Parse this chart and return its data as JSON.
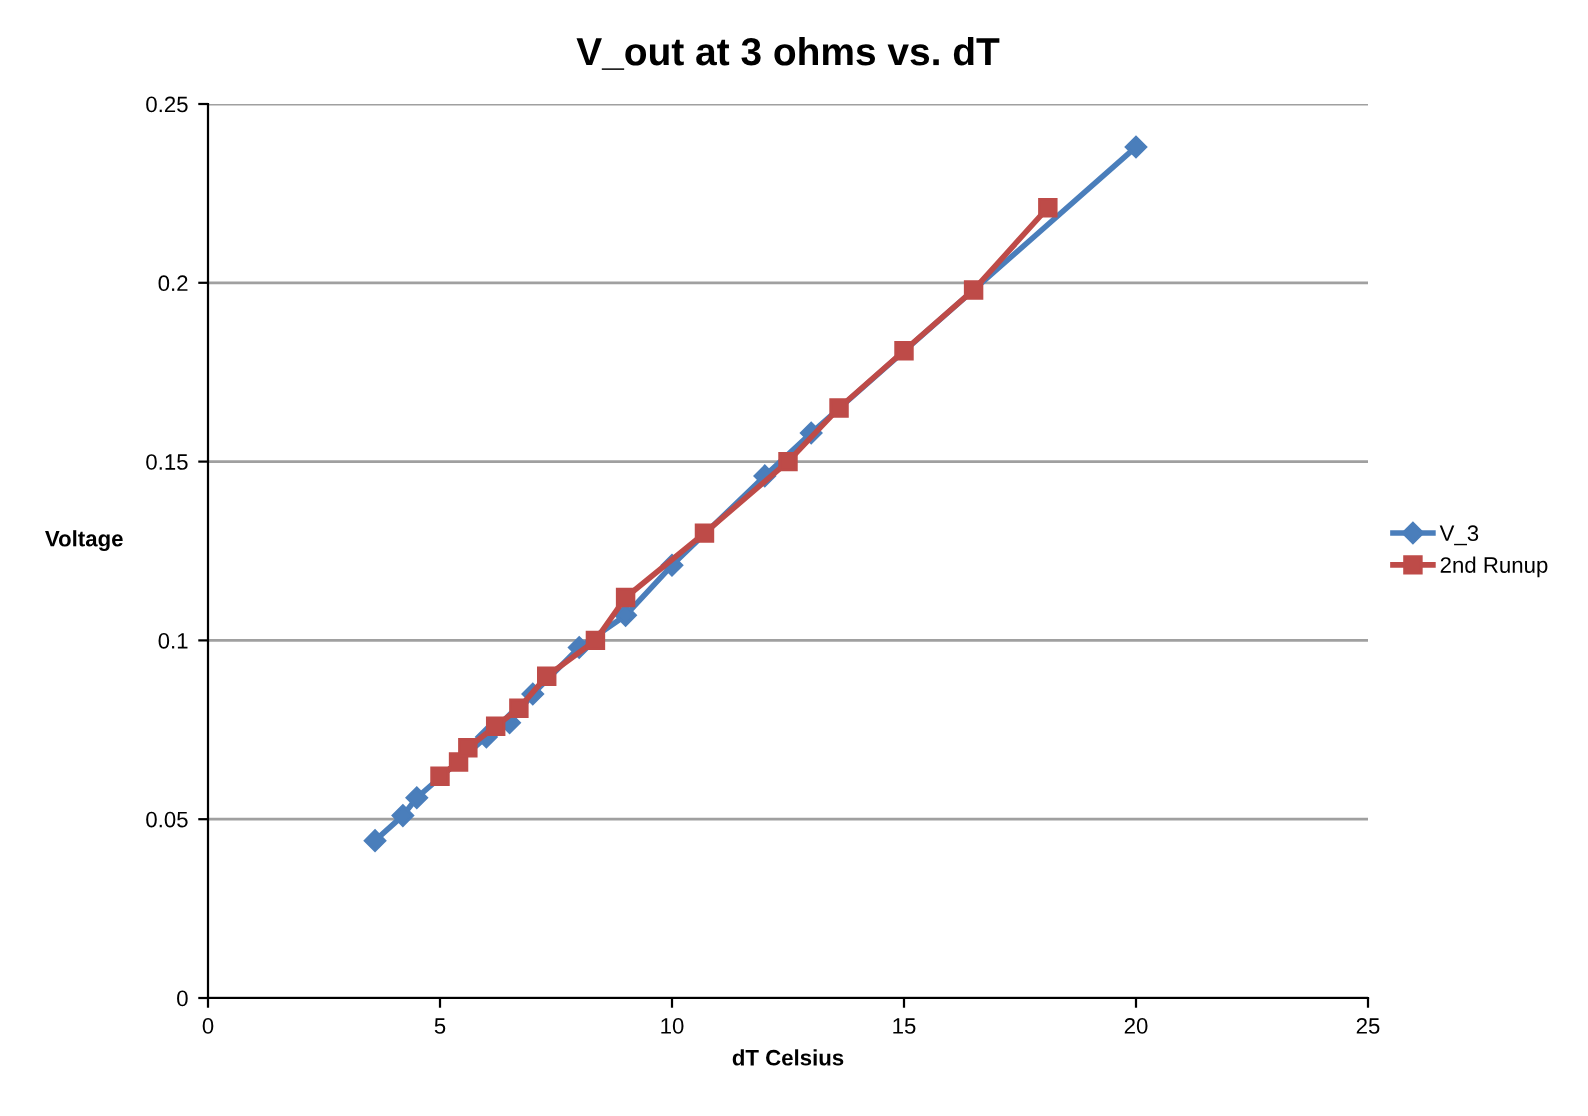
{
  "chart_data": {
    "type": "line",
    "title": "V_out at 3 ohms vs. dT",
    "xlabel": "dT Celsius",
    "ylabel": "Voltage",
    "xlim": [
      0,
      25
    ],
    "xticks": [
      0,
      5,
      10,
      15,
      20,
      25
    ],
    "ylim": [
      0,
      0.25
    ],
    "yticks": [
      0,
      0.05,
      0.1,
      0.15,
      0.2,
      0.25
    ],
    "grid": "y",
    "legend": "right",
    "series": [
      {
        "name": "V_3",
        "color": "#4a7ebb",
        "marker": "diamond",
        "x": [
          3.6,
          4.2,
          4.5,
          6.0,
          6.5,
          7.0,
          8.0,
          9.0,
          10.0,
          12.0,
          13.0,
          20.0
        ],
        "values": [
          0.044,
          0.051,
          0.056,
          0.073,
          0.077,
          0.085,
          0.098,
          0.107,
          0.121,
          0.146,
          0.158,
          0.238
        ]
      },
      {
        "name": "2nd Runup",
        "color": "#be4b48",
        "marker": "square",
        "x": [
          5.0,
          5.4,
          5.6,
          6.2,
          6.7,
          7.3,
          8.35,
          9.0,
          10.7,
          12.5,
          13.6,
          15.0,
          16.5,
          18.1
        ],
        "values": [
          0.062,
          0.066,
          0.07,
          0.076,
          0.081,
          0.09,
          0.1,
          0.112,
          0.13,
          0.15,
          0.165,
          0.181,
          0.198,
          0.221
        ]
      }
    ]
  }
}
